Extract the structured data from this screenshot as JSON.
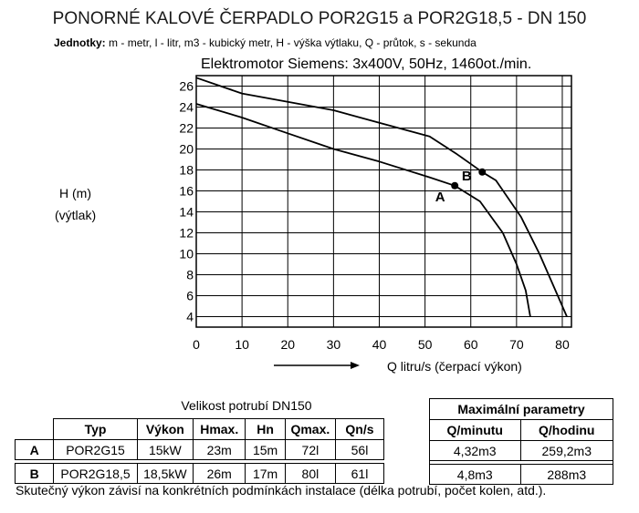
{
  "title": "PONORNÉ KALOVÉ ČERPADLO POR2G15 a POR2G18,5 - DN 150",
  "units": {
    "label": "Jednotky:",
    "text": "m - metr, l - litr, m3 - kubický metr, H - výška výtlaku, Q - průtok, s - sekunda"
  },
  "motor": "Elektromotor Siemens: 3x400V, 50Hz, 1460ot./min.",
  "ylabel_line1": "H (m)",
  "ylabel_line2": "(výtlak)",
  "chart_data": {
    "type": "line",
    "xlabel": "Q litru/s (čerpací výkon)",
    "ylabel": "H (m) (výtlak)",
    "xlim": [
      0,
      82
    ],
    "ylim": [
      3,
      27
    ],
    "xticks": [
      0,
      10,
      20,
      30,
      40,
      50,
      60,
      70,
      80
    ],
    "yticks": [
      4,
      6,
      8,
      10,
      12,
      14,
      16,
      18,
      20,
      22,
      24,
      26
    ],
    "grid": true,
    "series": [
      {
        "name": "A",
        "x": [
          0,
          10,
          20,
          30,
          40,
          51,
          56.5,
          62,
          67,
          70,
          72,
          73
        ],
        "y": [
          24.3,
          23.0,
          21.5,
          20.0,
          18.8,
          17.3,
          16.5,
          15.0,
          12.0,
          9.0,
          6.5,
          4.0
        ],
        "operating_point": {
          "x": 56.5,
          "y": 16.5
        }
      },
      {
        "name": "B",
        "x": [
          0,
          10,
          20,
          30,
          40,
          51,
          57,
          62.5,
          65.5,
          71,
          75,
          79,
          81
        ],
        "y": [
          26.8,
          25.3,
          24.5,
          23.7,
          22.5,
          21.2,
          19.5,
          17.8,
          17.0,
          13.5,
          10.0,
          6.0,
          4.0
        ],
        "operating_point": {
          "x": 62.5,
          "y": 17.8
        }
      }
    ]
  },
  "hydraulic_table": {
    "caption": "Velikost potrubí DN150",
    "headers": [
      "Typ",
      "Výkon",
      "Hmax.",
      "Hn",
      "Qmax.",
      "Qn/s"
    ],
    "rows": [
      {
        "key": "A",
        "cells": [
          "POR2G15",
          "15kW",
          "23m",
          "15m",
          "72l",
          "56l"
        ]
      },
      {
        "key": "B",
        "cells": [
          "POR2G18,5",
          "18,5kW",
          "26m",
          "17m",
          "80l",
          "61l"
        ]
      }
    ]
  },
  "max_table": {
    "title": "Maximální parametry",
    "headers": [
      "Q/minutu",
      "Q/hodinu"
    ],
    "rows": [
      [
        "4,32m3",
        "259,2m3"
      ],
      [
        "4,8m3",
        "288m3"
      ]
    ]
  },
  "note": "Skutečný výkon závisí na konkrétních podmínkách instalace (délka potrubí, počet kolen, atd.)."
}
